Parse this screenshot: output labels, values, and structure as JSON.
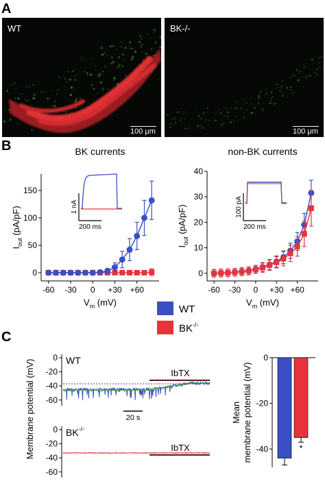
{
  "panels": {
    "a": {
      "letter": "A",
      "images": [
        {
          "label": "WT",
          "scale_bar": "100 μm"
        },
        {
          "label": "BK-/-",
          "scale_bar": "100 μm"
        }
      ]
    },
    "b": {
      "letter": "B"
    },
    "c": {
      "letter": "C"
    }
  },
  "colors": {
    "wt": "#3b4fc4",
    "bk": "#e8333a",
    "fit": "#3fae3f",
    "micro_red": "#d62828",
    "micro_green": "#3a8a3a"
  },
  "legend": [
    {
      "key": "wt",
      "label": "WT"
    },
    {
      "key": "bk",
      "label": "BK",
      "sup": "-/-"
    }
  ],
  "chart_data": [
    {
      "id": "bk-currents",
      "type": "line",
      "title": "BK currents",
      "xlabel": "V",
      "xlabel_sub": "m",
      "xlabel_unit": " (mV)",
      "ylabel": "I",
      "ylabel_sub": "out",
      "ylabel_unit": " (pA/pF)",
      "xlim": [
        -70,
        90
      ],
      "ylim": [
        -15,
        180
      ],
      "xticks": [
        -60,
        -30,
        0,
        30,
        60
      ],
      "xtick_labels": [
        "-60",
        "-30",
        "0",
        "+30",
        "+60"
      ],
      "yticks": [
        0,
        50,
        100,
        150
      ],
      "ytick_labels": [
        "0",
        "50",
        "100",
        "150"
      ],
      "series": [
        {
          "name": "WT",
          "color_key": "wt",
          "x": [
            -60,
            -50,
            -40,
            -30,
            -20,
            -10,
            0,
            10,
            20,
            30,
            40,
            50,
            60,
            70,
            80
          ],
          "y": [
            0,
            0,
            0,
            0,
            0,
            0,
            0,
            1,
            3,
            10,
            24,
            42,
            67,
            100,
            132
          ],
          "err": [
            2,
            2,
            2,
            2,
            2,
            2,
            2,
            3,
            5,
            8,
            15,
            20,
            25,
            32,
            35
          ]
        },
        {
          "name": "BK-/-",
          "color_key": "bk",
          "x": [
            -60,
            -50,
            -40,
            -30,
            -20,
            -10,
            0,
            10,
            20,
            30,
            40,
            50,
            60,
            70,
            80
          ],
          "y": [
            0,
            0,
            0,
            0,
            0,
            0,
            0,
            0,
            0,
            0,
            0,
            0,
            0,
            0,
            1
          ],
          "err": [
            2,
            2,
            2,
            2,
            2,
            2,
            2,
            2,
            2,
            2,
            2,
            2,
            2,
            3,
            6
          ]
        }
      ],
      "inset": {
        "scale_y": "1 nA",
        "scale_x": "200 ms"
      }
    },
    {
      "id": "non-bk-currents",
      "type": "line",
      "title": "non-BK currents",
      "xlabel": "V",
      "xlabel_sub": "m",
      "xlabel_unit": " (mV)",
      "ylabel": "I",
      "ylabel_sub": "out",
      "ylabel_unit": " (pA/pF)",
      "xlim": [
        -70,
        90
      ],
      "ylim": [
        -3,
        40
      ],
      "xticks": [
        -60,
        -30,
        0,
        30,
        60
      ],
      "xtick_labels": [
        "-60",
        "-30",
        "0",
        "+30",
        "+60"
      ],
      "yticks": [
        0,
        10,
        20,
        30,
        40
      ],
      "ytick_labels": [
        "0",
        "10",
        "20",
        "30",
        "40"
      ],
      "series": [
        {
          "name": "WT",
          "color_key": "wt",
          "x": [
            -60,
            -50,
            -40,
            -30,
            -20,
            -10,
            0,
            10,
            20,
            30,
            40,
            50,
            60,
            70,
            80
          ],
          "y": [
            0,
            0.1,
            0.2,
            0.4,
            0.7,
            1,
            1.6,
            2.4,
            3.4,
            4.6,
            6.3,
            8.8,
            12.5,
            19,
            31.5
          ],
          "err": [
            1.5,
            1.5,
            1.5,
            1.5,
            1.5,
            1.5,
            1.5,
            1.8,
            2,
            2.2,
            2.5,
            3,
            3.5,
            4.5,
            5
          ]
        },
        {
          "name": "BK-/-",
          "color_key": "bk",
          "x": [
            -60,
            -50,
            -40,
            -30,
            -20,
            -10,
            0,
            10,
            20,
            30,
            40,
            50,
            60,
            70,
            80
          ],
          "y": [
            0,
            0.1,
            0.2,
            0.4,
            0.6,
            0.9,
            1.5,
            2.2,
            3.2,
            4.3,
            5.7,
            7.8,
            10.5,
            15.5,
            25.5
          ],
          "err": [
            1.5,
            1.5,
            1.5,
            1.5,
            1.5,
            1.5,
            1.5,
            1.8,
            2,
            2.2,
            2.8,
            3.2,
            3.8,
            5,
            7
          ]
        }
      ],
      "inset": {
        "scale_y": "100 pA",
        "scale_x": "200 ms"
      }
    },
    {
      "id": "membrane-potential-traces",
      "type": "line",
      "ylabel": "Membrane potential (mV)",
      "wt": {
        "label": "WT",
        "drug": "IbTX",
        "scale_x": "20 s",
        "yticks": [
          0,
          -20,
          -40,
          -60
        ],
        "ytick_labels": [
          "0",
          "-20",
          "-40",
          "-60"
        ],
        "ylim": [
          -68,
          5
        ],
        "baseline": -45,
        "after": -36,
        "reference_line": -37
      },
      "bk": {
        "label": "BK",
        "label_sup": "-/-",
        "drug": "IbTX",
        "scale_x": "20s",
        "yticks": [
          0,
          -20,
          -40,
          -60
        ],
        "ytick_labels": [
          "0",
          "-20",
          "-40",
          "-60"
        ],
        "ylim": [
          -68,
          5
        ],
        "baseline": -33
      }
    },
    {
      "id": "mean-membrane-potential",
      "type": "bar",
      "ylabel": "Mean",
      "ylabel2": "membrane potential (mV)",
      "yticks": [
        0,
        -20,
        -40
      ],
      "ytick_labels": [
        "0",
        "-20",
        "-40"
      ],
      "ylim": [
        -48,
        0
      ],
      "categories": [
        "WT",
        "BK-/-"
      ],
      "values": [
        -44,
        -35
      ],
      "err": [
        3,
        2
      ],
      "annotation": "*"
    }
  ]
}
